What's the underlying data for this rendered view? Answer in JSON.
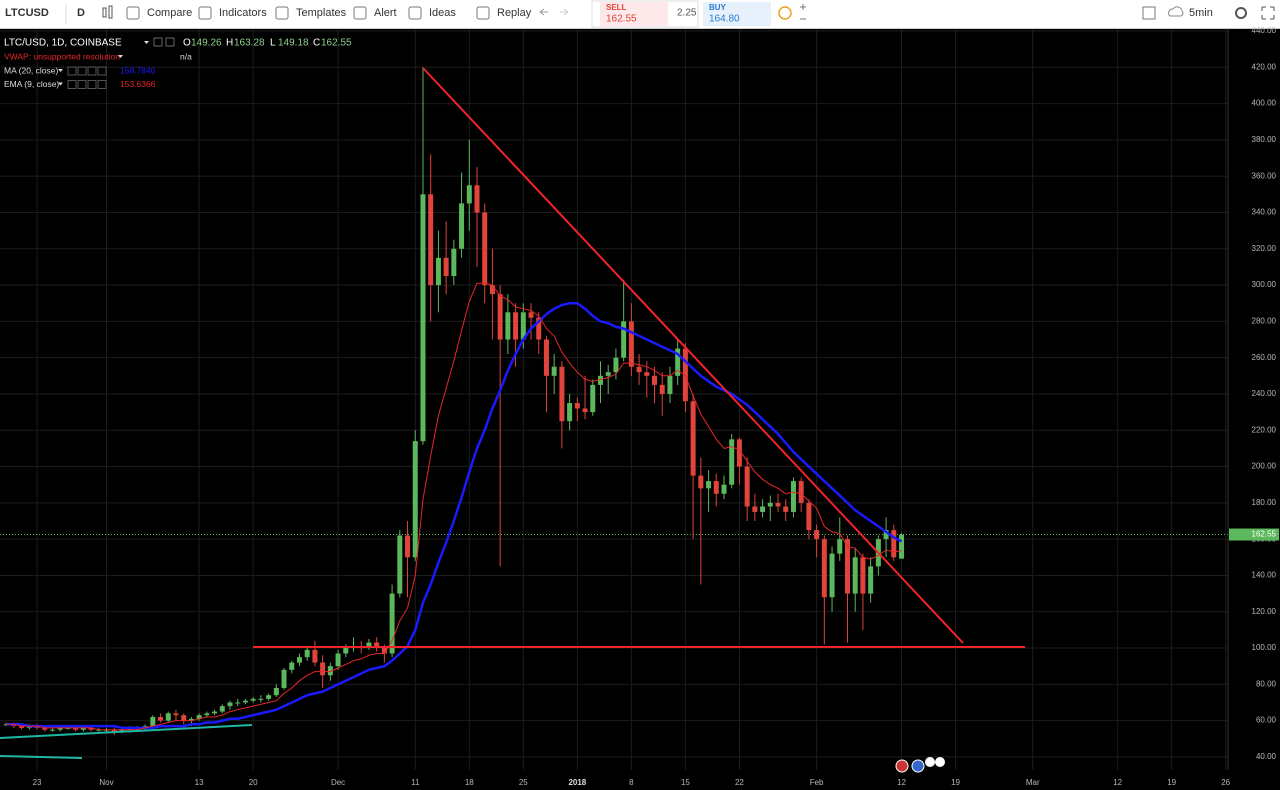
{
  "toolbar": {
    "symbol": "LTCUSD",
    "interval": "D",
    "buttons": [
      "Compare",
      "Indicators",
      "Templates",
      "Alert",
      "Ideas",
      "Replay"
    ],
    "sell": {
      "label": "SELL",
      "price": "162.55"
    },
    "spread": "2.25",
    "buy": {
      "label": "BUY",
      "price": "164.80"
    },
    "timeframe": "5min"
  },
  "chart_data": {
    "type": "candlestick",
    "title": "LTC/USD, 1D, COINBASE",
    "ohlc": [
      {
        "label": "O",
        "value": 149.26
      },
      {
        "label": "H",
        "value": 163.28
      },
      {
        "label": "L",
        "value": 149.18
      },
      {
        "label": "C",
        "value": 162.55
      }
    ],
    "indicators": [
      {
        "name": "VWAP: unsupported resolution",
        "value": "n/a"
      }
    ],
    "up_color": "#5cb85c",
    "down_color": "#e0443b",
    "candles": [
      [
        58,
        59,
        57,
        58
      ],
      [
        58,
        59,
        56,
        57
      ],
      [
        57,
        58,
        55,
        56
      ],
      [
        56,
        58,
        55,
        57
      ],
      [
        57,
        58,
        55,
        56
      ],
      [
        56,
        57,
        54,
        55
      ],
      [
        55,
        56,
        54,
        55
      ],
      [
        55,
        57,
        54,
        56
      ],
      [
        56,
        57,
        55,
        56
      ],
      [
        56,
        57,
        54,
        55
      ],
      [
        55,
        57,
        54,
        56
      ],
      [
        56,
        57,
        54,
        55
      ],
      [
        55,
        56,
        54,
        55
      ],
      [
        55,
        56,
        53,
        55
      ],
      [
        55,
        56,
        52,
        54
      ],
      [
        54,
        56,
        53,
        55
      ],
      [
        55,
        57,
        54,
        56
      ],
      [
        56,
        57,
        55,
        56
      ],
      [
        56,
        58,
        55,
        57
      ],
      [
        57,
        63,
        56,
        62
      ],
      [
        62,
        64,
        59,
        60
      ],
      [
        60,
        65,
        59,
        64
      ],
      [
        64,
        66,
        60,
        63
      ],
      [
        63,
        64,
        58,
        60
      ],
      [
        60,
        62,
        57,
        61
      ],
      [
        61,
        64,
        60,
        63
      ],
      [
        63,
        65,
        62,
        64
      ],
      [
        64,
        66,
        63,
        65
      ],
      [
        65,
        69,
        64,
        68
      ],
      [
        68,
        71,
        66,
        70
      ],
      [
        70,
        72,
        68,
        70
      ],
      [
        70,
        72,
        69,
        71
      ],
      [
        71,
        73,
        70,
        72
      ],
      [
        72,
        74,
        70,
        72
      ],
      [
        72,
        75,
        71,
        74
      ],
      [
        74,
        80,
        73,
        78
      ],
      [
        78,
        89,
        77,
        88
      ],
      [
        88,
        93,
        86,
        92
      ],
      [
        92,
        97,
        90,
        95
      ],
      [
        95,
        100,
        93,
        99
      ],
      [
        99,
        104,
        90,
        92
      ],
      [
        92,
        96,
        78,
        85
      ],
      [
        85,
        92,
        82,
        90
      ],
      [
        90,
        99,
        88,
        97
      ],
      [
        97,
        102,
        95,
        100
      ],
      [
        100,
        106,
        98,
        101
      ],
      [
        101,
        104,
        97,
        100
      ],
      [
        100,
        105,
        99,
        103
      ],
      [
        103,
        106,
        98,
        100
      ],
      [
        100,
        102,
        92,
        97
      ],
      [
        97,
        135,
        95,
        130
      ],
      [
        130,
        165,
        128,
        162
      ],
      [
        162,
        170,
        128,
        150
      ],
      [
        150,
        220,
        148,
        214
      ],
      [
        214,
        420,
        212,
        350
      ],
      [
        350,
        372,
        280,
        300
      ],
      [
        300,
        330,
        285,
        315
      ],
      [
        315,
        335,
        295,
        305
      ],
      [
        305,
        325,
        300,
        320
      ],
      [
        320,
        362,
        315,
        345
      ],
      [
        345,
        380,
        330,
        355
      ],
      [
        355,
        365,
        310,
        340
      ],
      [
        340,
        345,
        290,
        300
      ],
      [
        300,
        320,
        270,
        295
      ],
      [
        295,
        300,
        145,
        270
      ],
      [
        270,
        295,
        262,
        285
      ],
      [
        285,
        290,
        255,
        270
      ],
      [
        270,
        290,
        265,
        285
      ],
      [
        285,
        290,
        270,
        282
      ],
      [
        282,
        285,
        262,
        270
      ],
      [
        270,
        272,
        230,
        250
      ],
      [
        250,
        262,
        240,
        255
      ],
      [
        255,
        258,
        210,
        225
      ],
      [
        225,
        240,
        220,
        235
      ],
      [
        235,
        238,
        225,
        232
      ],
      [
        232,
        250,
        226,
        230
      ],
      [
        230,
        248,
        228,
        245
      ],
      [
        245,
        258,
        235,
        250
      ],
      [
        250,
        256,
        240,
        252
      ],
      [
        252,
        265,
        248,
        260
      ],
      [
        260,
        303,
        258,
        280
      ],
      [
        280,
        290,
        250,
        255
      ],
      [
        255,
        262,
        245,
        252
      ],
      [
        252,
        258,
        238,
        250
      ],
      [
        250,
        255,
        235,
        245
      ],
      [
        245,
        252,
        228,
        240
      ],
      [
        240,
        255,
        235,
        250
      ],
      [
        250,
        270,
        245,
        265
      ],
      [
        265,
        268,
        230,
        236
      ],
      [
        236,
        240,
        160,
        195
      ],
      [
        195,
        205,
        135,
        188
      ],
      [
        188,
        198,
        175,
        192
      ],
      [
        192,
        196,
        178,
        185
      ],
      [
        185,
        195,
        182,
        190
      ],
      [
        190,
        218,
        188,
        215
      ],
      [
        215,
        216,
        190,
        200
      ],
      [
        200,
        205,
        170,
        178
      ],
      [
        178,
        185,
        170,
        175
      ],
      [
        175,
        182,
        172,
        178
      ],
      [
        178,
        184,
        170,
        180
      ],
      [
        180,
        185,
        175,
        178
      ],
      [
        178,
        182,
        170,
        175
      ],
      [
        175,
        194,
        172,
        192
      ],
      [
        192,
        194,
        175,
        180
      ],
      [
        180,
        182,
        160,
        165
      ],
      [
        165,
        168,
        150,
        160
      ],
      [
        160,
        162,
        102,
        128
      ],
      [
        128,
        156,
        120,
        152
      ],
      [
        152,
        172,
        148,
        160
      ],
      [
        160,
        162,
        103,
        130
      ],
      [
        130,
        155,
        120,
        150
      ],
      [
        150,
        152,
        110,
        130
      ],
      [
        130,
        150,
        125,
        145
      ],
      [
        145,
        162,
        140,
        160
      ],
      [
        160,
        172,
        150,
        165
      ],
      [
        165,
        168,
        148,
        150
      ],
      [
        149.26,
        163.28,
        149.18,
        162.55
      ]
    ],
    "series": [
      {
        "name": "MA (20, close)",
        "color": "#1a1aff",
        "width": 2.5,
        "last_label": "158.7840",
        "values": [
          58,
          58,
          58,
          57,
          57,
          57,
          57,
          57,
          57,
          57,
          57,
          57,
          57,
          57,
          57,
          56,
          56,
          56,
          56,
          56,
          57,
          57,
          57,
          57,
          58,
          58,
          59,
          59,
          60,
          61,
          61,
          62,
          63,
          64,
          65,
          66,
          68,
          70,
          72,
          74,
          75,
          76,
          78,
          80,
          82,
          84,
          86,
          88,
          89,
          90,
          93,
          97,
          101,
          110,
          125,
          135,
          147,
          158,
          170,
          183,
          197,
          210,
          220,
          232,
          242,
          253,
          262,
          270,
          276,
          280,
          284,
          287,
          289,
          290,
          290,
          287,
          283,
          280,
          279,
          277,
          276,
          274,
          272,
          270,
          268,
          266,
          264,
          262,
          258,
          254,
          250,
          247,
          244,
          242,
          240,
          237,
          234,
          230,
          226,
          222,
          218,
          213,
          208,
          204,
          200,
          196,
          192,
          188,
          184,
          180,
          176,
          173,
          170,
          167,
          164,
          161,
          158.78
        ]
      },
      {
        "name": "EMA (9, close)",
        "color": "#e8262b",
        "width": 1,
        "last_label": "153.6366",
        "values": [
          58,
          58,
          57,
          57,
          57,
          56,
          56,
          56,
          56,
          56,
          56,
          56,
          55,
          55,
          55,
          55,
          55,
          55,
          56,
          57,
          58,
          59,
          60,
          60,
          60,
          61,
          62,
          62,
          63,
          65,
          66,
          67,
          68,
          69,
          70,
          71,
          75,
          78,
          82,
          85,
          87,
          87,
          87,
          89,
          91,
          93,
          94,
          96,
          97,
          97,
          104,
          115,
          122,
          140,
          182,
          206,
          228,
          243,
          258,
          275,
          291,
          301,
          301,
          300,
          294,
          292,
          288,
          287,
          286,
          283,
          276,
          272,
          263,
          257,
          252,
          248,
          247,
          248,
          249,
          251,
          257,
          257,
          256,
          255,
          253,
          250,
          250,
          253,
          250,
          239,
          229,
          222,
          215,
          210,
          211,
          209,
          203,
          197,
          193,
          190,
          188,
          185,
          186,
          185,
          181,
          177,
          167,
          164,
          163,
          156,
          155,
          150,
          149,
          151,
          154,
          153,
          153.64
        ]
      }
    ],
    "price_line": {
      "value": 162.55,
      "label": "162.55",
      "color": "#5cb85c"
    },
    "xlim": [
      -0.8,
      158.3
    ],
    "xticks": [
      {
        "value": 4,
        "label": "23"
      },
      {
        "value": 13,
        "label": "Nov"
      },
      {
        "value": 25,
        "label": "13"
      },
      {
        "value": 32,
        "label": "20"
      },
      {
        "value": 43,
        "label": "Dec"
      },
      {
        "value": 53,
        "label": "11"
      },
      {
        "value": 60,
        "label": "18"
      },
      {
        "value": 67,
        "label": "25"
      },
      {
        "value": 74,
        "label": "2018"
      },
      {
        "value": 81,
        "label": "8"
      },
      {
        "value": 88,
        "label": "15"
      },
      {
        "value": 95,
        "label": "22"
      },
      {
        "value": 105,
        "label": "Feb"
      },
      {
        "value": 116,
        "label": "12"
      },
      {
        "value": 123,
        "label": "19"
      },
      {
        "value": 133,
        "label": "Mar"
      },
      {
        "value": 144,
        "label": "12"
      },
      {
        "value": 151,
        "label": "19"
      },
      {
        "value": 158,
        "label": "26"
      }
    ],
    "ylim": [
      32.8,
      441.1
    ],
    "yticks": [
      {
        "value": 40,
        "label": "40.00"
      },
      {
        "value": 60,
        "label": "60.00"
      },
      {
        "value": 80,
        "label": "80.00"
      },
      {
        "value": 100,
        "label": "100.00"
      },
      {
        "value": 120,
        "label": "120.00"
      },
      {
        "value": 140,
        "label": "140.00"
      },
      {
        "value": 160,
        "label": "160.00"
      },
      {
        "value": 180,
        "label": "180.00"
      },
      {
        "value": 200,
        "label": "200.00"
      },
      {
        "value": 220,
        "label": "220.00"
      },
      {
        "value": 240,
        "label": "240.00"
      },
      {
        "value": 260,
        "label": "260.00"
      },
      {
        "value": 280,
        "label": "280.00"
      },
      {
        "value": 300,
        "label": "300.00"
      },
      {
        "value": 320,
        "label": "320.00"
      },
      {
        "value": 340,
        "label": "340.00"
      },
      {
        "value": 360,
        "label": "360.00"
      },
      {
        "value": 380,
        "label": "380.00"
      },
      {
        "value": 400,
        "label": "400.00"
      },
      {
        "value": 420,
        "label": "420.00"
      },
      {
        "value": 440,
        "label": "440.00"
      }
    ],
    "grid": true
  }
}
